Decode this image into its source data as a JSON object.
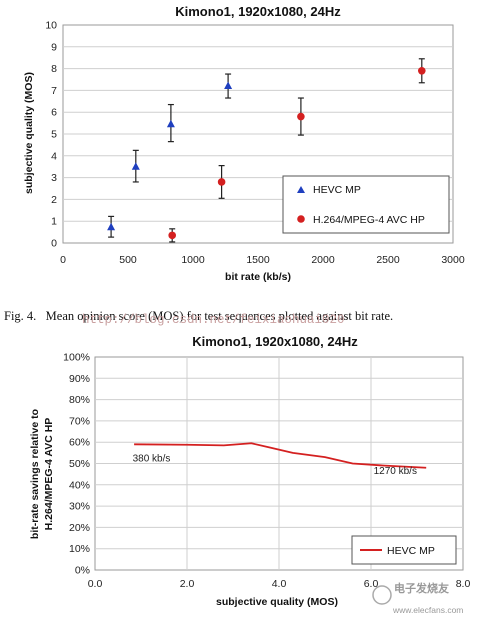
{
  "chart_data": [
    {
      "type": "scatter",
      "title": "Kimono1, 1920x1080, 24Hz",
      "xlabel": "bit rate (kb/s)",
      "ylabel": "subjective quality (MOS)",
      "xlim": [
        0,
        3000
      ],
      "ylim": [
        0,
        10
      ],
      "x_ticks": [
        "0",
        "500",
        "1000",
        "1500",
        "2000",
        "2500",
        "3000"
      ],
      "y_ticks": [
        "0",
        "1",
        "2",
        "3",
        "4",
        "5",
        "6",
        "7",
        "8",
        "9",
        "10"
      ],
      "grid": true,
      "legend_position": "bottom-right",
      "series": [
        {
          "name": "HEVC MP",
          "marker": "triangle",
          "color": "#1f3fbf",
          "points": [
            {
              "x": 370,
              "y": 0.72,
              "err_low": 0.45,
              "err_high": 0.5
            },
            {
              "x": 560,
              "y": 3.5,
              "err_low": 0.7,
              "err_high": 0.75
            },
            {
              "x": 830,
              "y": 5.45,
              "err_low": 0.8,
              "err_high": 0.9
            },
            {
              "x": 1270,
              "y": 7.2,
              "err_low": 0.55,
              "err_high": 0.55
            }
          ]
        },
        {
          "name": "H.264/MPEG-4 AVC HP",
          "marker": "circle",
          "color": "#d42020",
          "points": [
            {
              "x": 840,
              "y": 0.35,
              "err_low": 0.3,
              "err_high": 0.3
            },
            {
              "x": 1220,
              "y": 2.8,
              "err_low": 0.75,
              "err_high": 0.75
            },
            {
              "x": 1830,
              "y": 5.8,
              "err_low": 0.85,
              "err_high": 0.85
            },
            {
              "x": 2760,
              "y": 7.9,
              "err_low": 0.55,
              "err_high": 0.55
            }
          ]
        }
      ]
    },
    {
      "type": "line",
      "title": "Kimono1, 1920x1080, 24Hz",
      "xlabel": "subjective quality (MOS)",
      "ylabel_lines": [
        "bit-rate savings relative to",
        "H.264/MPEG-4 AVC HP"
      ],
      "xlim": [
        0,
        8
      ],
      "ylim": [
        0,
        100
      ],
      "x_ticks": [
        "0.0",
        "2.0",
        "4.0",
        "6.0",
        "8.0"
      ],
      "y_ticks": [
        "0%",
        "10%",
        "20%",
        "30%",
        "40%",
        "50%",
        "60%",
        "70%",
        "80%",
        "90%",
        "100%"
      ],
      "grid": true,
      "legend_position": "bottom-right",
      "series": [
        {
          "name": "HEVC MP",
          "color": "#d42020",
          "x": [
            0.85,
            2.0,
            2.8,
            3.4,
            3.8,
            4.3,
            5.0,
            5.6,
            6.3,
            7.2
          ],
          "y": [
            59,
            58.8,
            58.5,
            59.5,
            57.5,
            55,
            53,
            50,
            49,
            48
          ]
        }
      ],
      "annotations": [
        {
          "text": "380 kb/s",
          "x": 1.1,
          "y": 51
        },
        {
          "text": "1270 kb/s",
          "x": 6.6,
          "y": 45
        }
      ]
    }
  ],
  "caption": "Fig. 4.   Mean opinion score (MOS) for test sequences plotted against bit rate.",
  "watermark_url": "http://blog.csdn.net/feixiaohuai020",
  "watermark_site": "www.elecfans.com",
  "watermark_brand": "电子发烧友"
}
